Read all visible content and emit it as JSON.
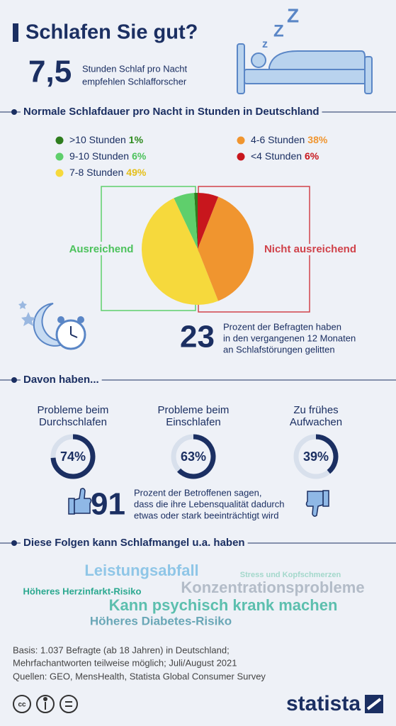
{
  "header": {
    "title": "Schlafen Sie gut?",
    "stat_value": "7,5",
    "stat_text": [
      "Stunden Schlaf pro Nacht",
      "empfehlen Schlafforscher"
    ]
  },
  "chart_data": [
    {
      "type": "pie",
      "title": "Normale Schlafdauer pro Nacht in Stunden in Deutschland",
      "categories": [
        ">10 Stunden",
        "9-10 Stunden",
        "7-8 Stunden",
        "4-6 Stunden",
        "<4 Stunden"
      ],
      "values": [
        1,
        6,
        49,
        38,
        6
      ],
      "value_labels": [
        "1%",
        "6%",
        "49%",
        "38%",
        "6%"
      ],
      "colors": [
        "#2e7d1e",
        "#5fcf6c",
        "#f6d93c",
        "#f0952f",
        "#c8161d"
      ],
      "label_colors": [
        "#2e8a1e",
        "#4cc25c",
        "#e5bf18",
        "#f0952f",
        "#c8161d"
      ],
      "annotations": [
        "Ausreichend",
        "Nicht ausreichend"
      ]
    },
    {
      "type": "donut",
      "title": "Davon haben...",
      "categories": [
        "Probleme beim\nDurchschlafen",
        "Probleme beim\nEinschlafen",
        "Zu frühes\nAufwachen"
      ],
      "values": [
        74,
        63,
        39
      ],
      "value_labels": [
        "74%",
        "63%",
        "39%"
      ],
      "ylim": [
        0,
        100
      ],
      "color": "#1b2f62"
    }
  ],
  "stat_23": {
    "value": "23",
    "text": [
      "Prozent der Befragten haben",
      "in den vergangenen 12 Monaten",
      "an Schlafstörungen gelitten"
    ]
  },
  "stat_91": {
    "value": "91",
    "text": [
      "Prozent der Betroffenen sagen,",
      "dass die ihre Lebensqualität dadurch",
      "etwas oder stark beeinträchtigt wird"
    ]
  },
  "consequences": {
    "title": "Diese Folgen kann Schlafmangel u.a. haben",
    "words": [
      {
        "text": "Leistungsabfall",
        "color": "#8fc6e7"
      },
      {
        "text": "Stress und Kopfschmerzen",
        "color": "#a3d8cb"
      },
      {
        "text": "Höheres Herzinfarkt-Risiko",
        "color": "#2aa88f"
      },
      {
        "text": "Konzentrationsprobleme",
        "color": "#b3bcc8"
      },
      {
        "text": "Kann psychisch krank machen",
        "color": "#5cbfae"
      },
      {
        "text": "Höheres Diabetes-Risiko",
        "color": "#6aa7b7"
      }
    ]
  },
  "footer": {
    "basis": [
      "Basis: 1.037 Befragte (ab 18 Jahren) in Deutschland;",
      "Mehrfachantworten teilweise möglich; Juli/August 2021"
    ],
    "sources": "Quellen: GEO, MensHealth, Statista Global Consumer Survey",
    "brand": "statista"
  }
}
